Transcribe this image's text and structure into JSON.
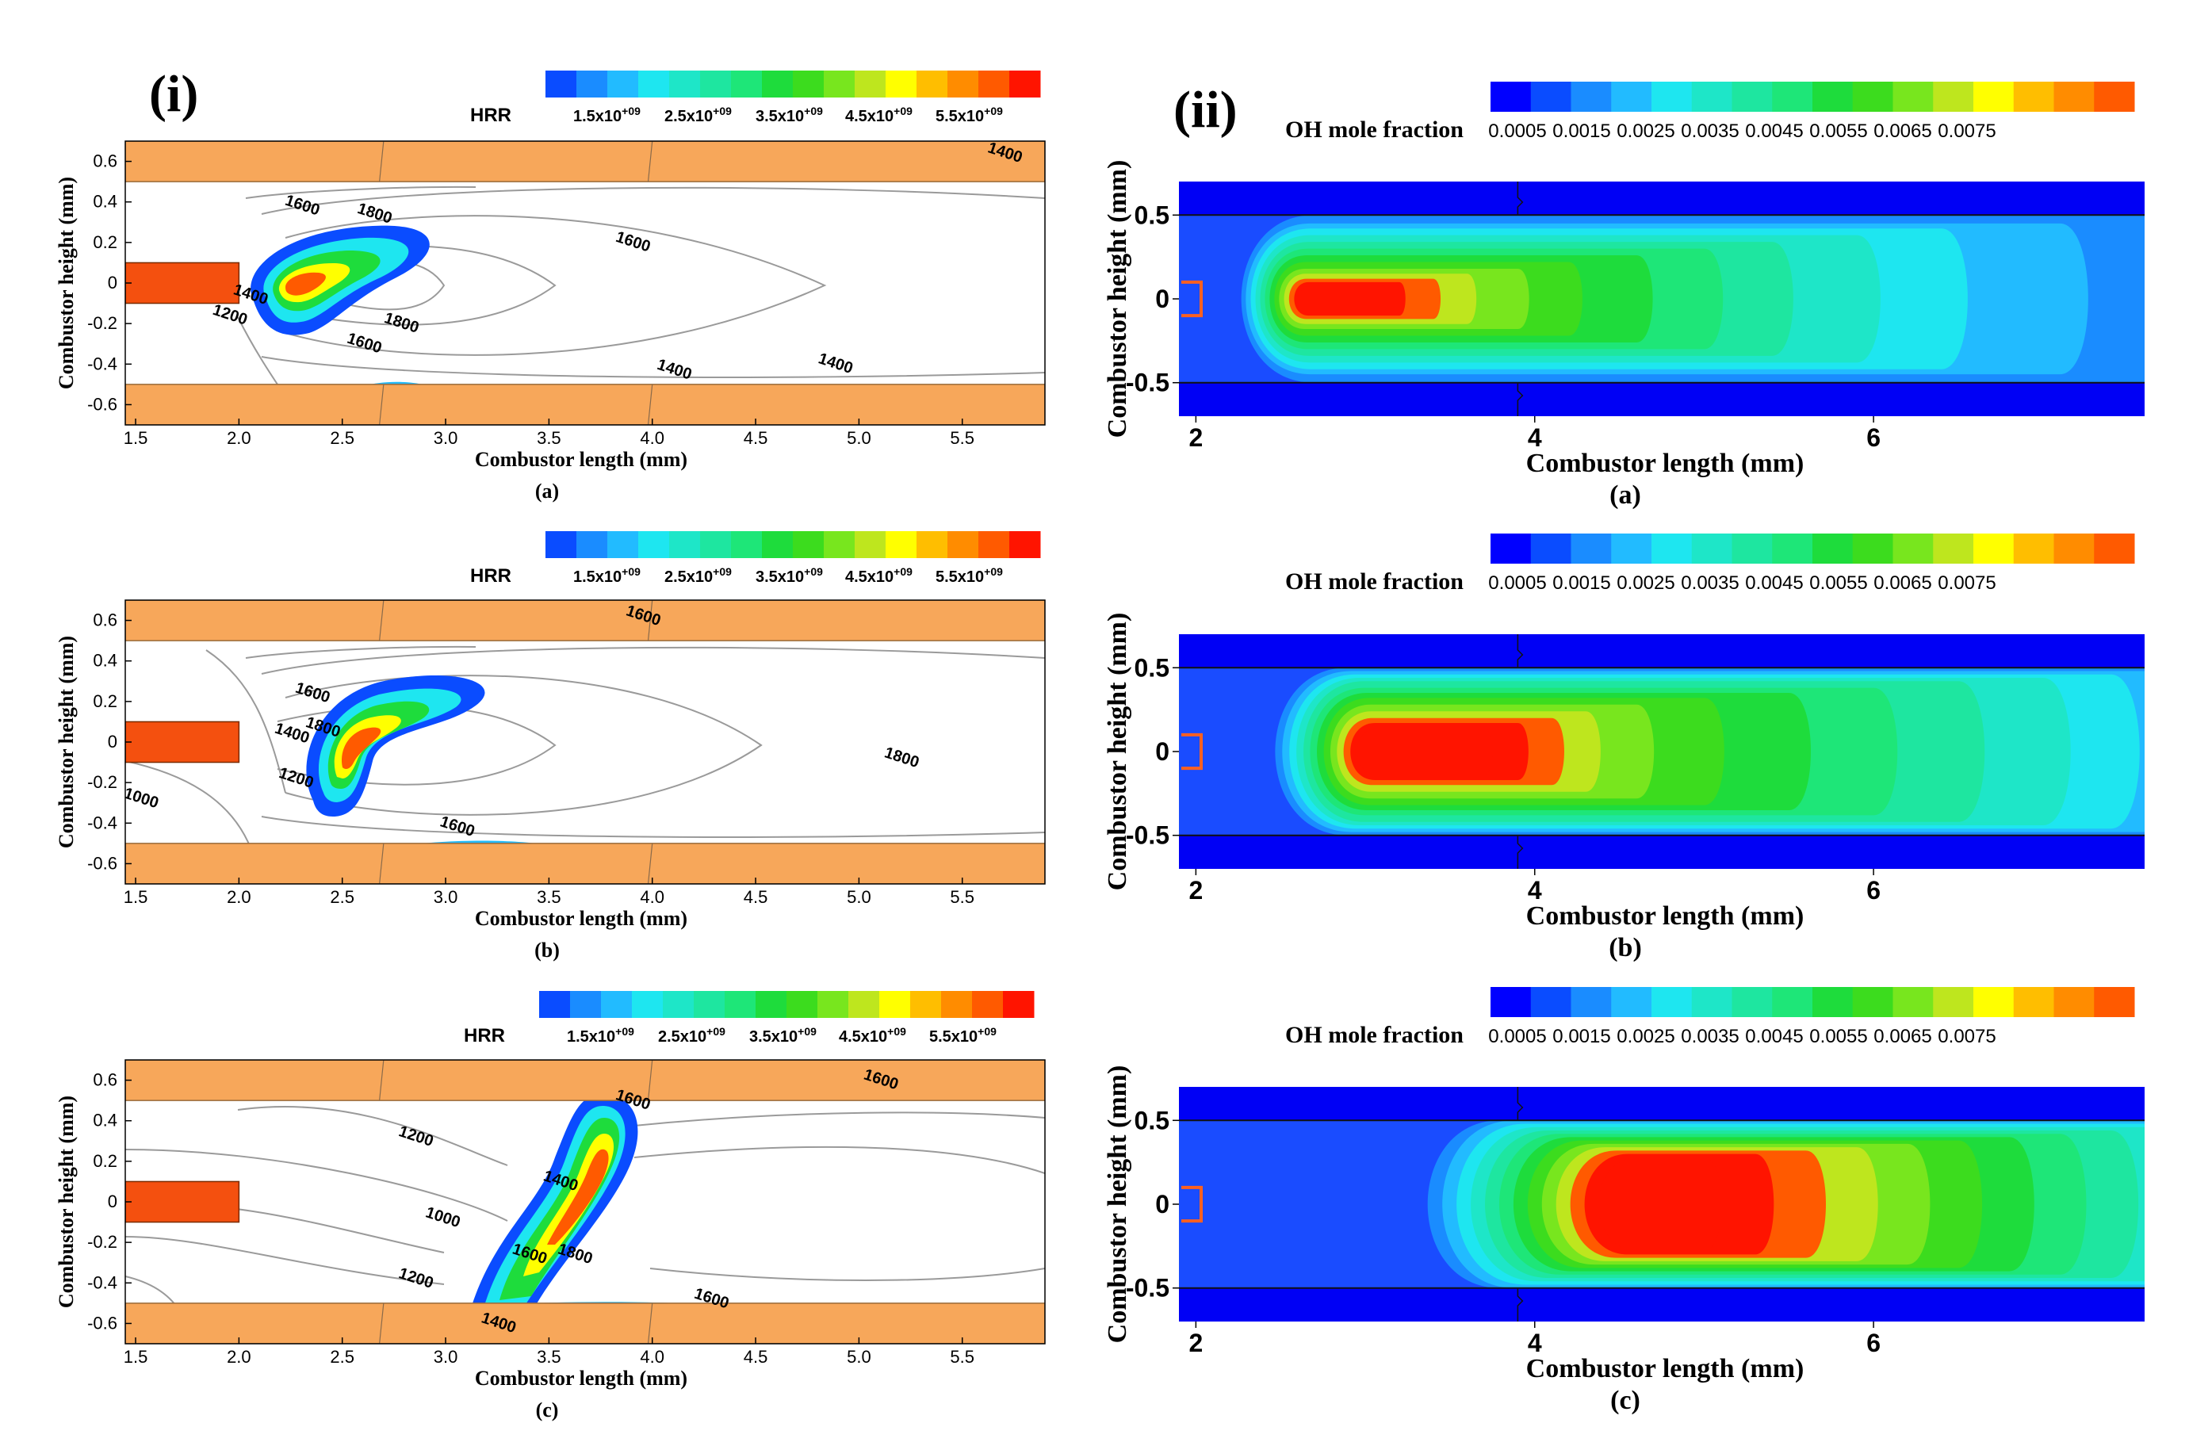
{
  "figure": {
    "left_label": "(i)",
    "right_label": "(ii)"
  },
  "colors": {
    "wall": "#F7A75A",
    "wall_edge": "#9a6a3a",
    "injector": "#F4500F",
    "contour": "#9a9a9a",
    "domain_bg": "#1a1ae6"
  },
  "colormap": [
    "#0000ff",
    "#0a4cff",
    "#1a8cff",
    "#22bbff",
    "#1ee6f0",
    "#1ee6c8",
    "#1ee6a0",
    "#1ee678",
    "#1edc3c",
    "#3cdc1e",
    "#78e61e",
    "#bee61e",
    "#ffff00",
    "#ffbe00",
    "#ff8c00",
    "#ff5a00",
    "#ff1400"
  ],
  "hrr_legend": {
    "title": "HRR",
    "labels": [
      "1.5x10+09",
      "2.5x10+09",
      "3.5x10+09",
      "4.5x10+09",
      "5.5x10+09"
    ]
  },
  "oh_legend": {
    "title": "OH mole fraction",
    "labels": [
      "0.0005",
      "0.0015",
      "0.0025",
      "0.0035",
      "0.0045",
      "0.0055",
      "0.0065",
      "0.0075"
    ]
  },
  "chart_data": [
    {
      "type": "heatmap",
      "panel": "(i)(a)",
      "caption": "(a)",
      "xlabel": "Combustor length (mm)",
      "ylabel": "Combustor height (mm)",
      "xlim": [
        1.45,
        5.9
      ],
      "ylim": [
        -0.7,
        0.7
      ],
      "xticks": [
        "1.5",
        "2.0",
        "2.5",
        "3.0",
        "3.5",
        "4.0",
        "4.5",
        "5.0",
        "5.5"
      ],
      "yticks": [
        "0.6",
        "0.4",
        "0.2",
        "0",
        "-0.2",
        "-0.4",
        "-0.6"
      ],
      "field": "HRR",
      "hrr_peak_location": [
        2.25,
        -0.02
      ],
      "contour_labels": [
        {
          "text": "1600",
          "x": 2.3,
          "y": 0.36
        },
        {
          "text": "1800",
          "x": 2.65,
          "y": 0.32
        },
        {
          "text": "1600",
          "x": 3.9,
          "y": 0.18
        },
        {
          "text": "1400",
          "x": 2.05,
          "y": -0.08
        },
        {
          "text": "1200",
          "x": 1.95,
          "y": -0.18
        },
        {
          "text": "1800",
          "x": 2.78,
          "y": -0.22
        },
        {
          "text": "1600",
          "x": 2.6,
          "y": -0.32
        },
        {
          "text": "1400",
          "x": 4.1,
          "y": -0.45
        },
        {
          "text": "1400",
          "x": 4.88,
          "y": -0.42
        },
        {
          "text": "1400",
          "x": 5.7,
          "y": 0.62
        }
      ]
    },
    {
      "type": "heatmap",
      "panel": "(i)(b)",
      "caption": "(b)",
      "xlabel": "Combustor length (mm)",
      "ylabel": "Combustor height (mm)",
      "xlim": [
        1.45,
        5.9
      ],
      "ylim": [
        -0.7,
        0.7
      ],
      "xticks": [
        "1.5",
        "2.0",
        "2.5",
        "3.0",
        "3.5",
        "4.0",
        "4.5",
        "5.0",
        "5.5"
      ],
      "yticks": [
        "0.6",
        "0.4",
        "0.2",
        "0",
        "-0.2",
        "-0.4",
        "-0.6"
      ],
      "field": "HRR",
      "hrr_peak_location": [
        2.4,
        0.0
      ],
      "contour_labels": [
        {
          "text": "1600",
          "x": 2.35,
          "y": 0.22
        },
        {
          "text": "1400",
          "x": 2.25,
          "y": 0.02
        },
        {
          "text": "1800",
          "x": 2.4,
          "y": 0.05
        },
        {
          "text": "1200",
          "x": 2.27,
          "y": -0.2
        },
        {
          "text": "1000",
          "x": 1.52,
          "y": -0.3
        },
        {
          "text": "1800",
          "x": 5.2,
          "y": -0.1
        },
        {
          "text": "1600",
          "x": 3.05,
          "y": -0.44
        },
        {
          "text": "1600",
          "x": 3.95,
          "y": 0.6
        }
      ]
    },
    {
      "type": "heatmap",
      "panel": "(i)(c)",
      "caption": "(c)",
      "xlabel": "Combustor length (mm)",
      "ylabel": "Combustor height (mm)",
      "xlim": [
        1.45,
        5.9
      ],
      "ylim": [
        -0.7,
        0.7
      ],
      "xticks": [
        "1.5",
        "2.0",
        "2.5",
        "3.0",
        "3.5",
        "4.0",
        "4.5",
        "5.0",
        "5.5"
      ],
      "yticks": [
        "0.6",
        "0.4",
        "0.2",
        "0",
        "-0.2",
        "-0.4",
        "-0.6"
      ],
      "field": "HRR",
      "hrr_peak_location": [
        3.7,
        0.15
      ],
      "contour_labels": [
        {
          "text": "1200",
          "x": 2.85,
          "y": 0.3
        },
        {
          "text": "1000",
          "x": 2.98,
          "y": -0.1
        },
        {
          "text": "1200",
          "x": 2.85,
          "y": -0.4
        },
        {
          "text": "1600",
          "x": 3.9,
          "y": 0.48
        },
        {
          "text": "1400",
          "x": 3.55,
          "y": 0.08
        },
        {
          "text": "1600",
          "x": 3.4,
          "y": -0.28
        },
        {
          "text": "1800",
          "x": 3.62,
          "y": -0.28
        },
        {
          "text": "1600",
          "x": 4.28,
          "y": -0.5
        },
        {
          "text": "1400",
          "x": 3.25,
          "y": -0.62
        },
        {
          "text": "1600",
          "x": 5.1,
          "y": 0.58
        }
      ]
    },
    {
      "type": "heatmap",
      "panel": "(ii)(a)",
      "caption": "(a)",
      "xlabel": "Combustor length (mm)",
      "ylabel": "Combustor height (mm)",
      "xlim": [
        1.9,
        7.6
      ],
      "ylim": [
        -0.7,
        0.7
      ],
      "xticks": [
        "2",
        "4",
        "6"
      ],
      "yticks": [
        "0.5",
        "0",
        "-0.5"
      ],
      "field": "OH mole fraction",
      "oh_peak_location": [
        2.8,
        -0.05
      ],
      "oh_peak_value": 0.0075
    },
    {
      "type": "heatmap",
      "panel": "(ii)(b)",
      "caption": "(b)",
      "xlabel": "Combustor length (mm)",
      "ylabel": "Combustor height (mm)",
      "xlim": [
        1.9,
        7.6
      ],
      "ylim": [
        -0.7,
        0.7
      ],
      "xticks": [
        "2",
        "4",
        "6"
      ],
      "yticks": [
        "0.5",
        "0",
        "-0.5"
      ],
      "field": "OH mole fraction",
      "oh_peak_location": [
        3.2,
        0.0
      ],
      "oh_peak_value": 0.0075
    },
    {
      "type": "heatmap",
      "panel": "(ii)(c)",
      "caption": "(c)",
      "xlabel": "Combustor length (mm)",
      "ylabel": "Combustor height (mm)",
      "xlim": [
        1.9,
        7.6
      ],
      "ylim": [
        -0.7,
        0.7
      ],
      "xticks": [
        "2",
        "4",
        "6"
      ],
      "yticks": [
        "0.5",
        "0",
        "-0.5"
      ],
      "field": "OH mole fraction",
      "oh_peak_location": [
        4.5,
        0.0
      ],
      "oh_peak_value": 0.0075
    }
  ]
}
